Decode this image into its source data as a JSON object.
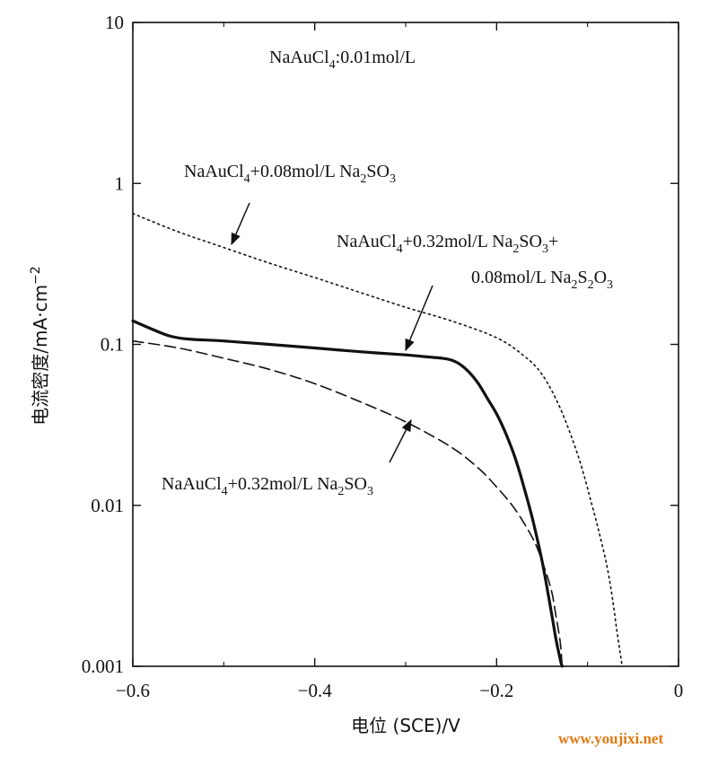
{
  "chart_data": {
    "type": "line",
    "title": "",
    "xlabel": "电位 (SCE)/V",
    "ylabel": "电流密度/mA·cm",
    "ylabel_sup": "−2",
    "xlim": [
      -0.6,
      0
    ],
    "ylim": [
      0.001,
      10
    ],
    "yscale": "log",
    "x_ticks": [
      -0.6,
      -0.4,
      -0.2,
      0
    ],
    "x_tick_labels": [
      "−0.6",
      "−0.4",
      "−0.2",
      "0"
    ],
    "y_ticks": [
      10,
      1,
      0.1,
      0.01,
      0.001
    ],
    "y_tick_labels": [
      "10",
      "1",
      "0.1",
      "0.01",
      "0.001"
    ],
    "grid": false,
    "header_note": {
      "main": "NaAuCl",
      "sub": "4",
      "tail": ":0.01mol/L"
    },
    "series": [
      {
        "style": "dotted",
        "x": [
          -0.6,
          -0.55,
          -0.5,
          -0.45,
          -0.4,
          -0.35,
          -0.3,
          -0.25,
          -0.2,
          -0.17,
          -0.15,
          -0.13,
          -0.11,
          -0.095,
          -0.085,
          -0.078,
          -0.072,
          -0.068,
          -0.064,
          -0.062
        ],
        "y": [
          0.65,
          0.5,
          0.4,
          0.32,
          0.26,
          0.21,
          0.17,
          0.14,
          0.11,
          0.085,
          0.065,
          0.04,
          0.02,
          0.01,
          0.006,
          0.004,
          0.0025,
          0.0017,
          0.0012,
          0.001
        ]
      },
      {
        "style": "solid",
        "x": [
          -0.6,
          -0.58,
          -0.56,
          -0.54,
          -0.5,
          -0.45,
          -0.4,
          -0.35,
          -0.3,
          -0.28,
          -0.27,
          -0.26,
          -0.25,
          -0.24,
          -0.23,
          -0.22,
          -0.21,
          -0.2,
          -0.19,
          -0.18,
          -0.17,
          -0.16,
          -0.15,
          -0.14,
          -0.135,
          -0.13,
          -0.128
        ],
        "y": [
          0.14,
          0.125,
          0.113,
          0.108,
          0.105,
          0.1,
          0.095,
          0.09,
          0.086,
          0.084,
          0.083,
          0.082,
          0.08,
          0.075,
          0.067,
          0.057,
          0.046,
          0.037,
          0.028,
          0.02,
          0.013,
          0.008,
          0.0045,
          0.0022,
          0.0015,
          0.0011,
          0.001
        ]
      },
      {
        "style": "dashed",
        "x": [
          -0.6,
          -0.55,
          -0.5,
          -0.45,
          -0.4,
          -0.35,
          -0.3,
          -0.25,
          -0.22,
          -0.2,
          -0.18,
          -0.16,
          -0.15,
          -0.14,
          -0.135,
          -0.13,
          -0.128
        ],
        "y": [
          0.105,
          0.095,
          0.082,
          0.07,
          0.057,
          0.044,
          0.033,
          0.023,
          0.017,
          0.013,
          0.0095,
          0.0062,
          0.0045,
          0.003,
          0.0021,
          0.0014,
          0.001
        ]
      }
    ],
    "annotations": [
      {
        "parts": [
          [
            "NaAuCl",
            "4",
            "+0.08mol/L Na"
          ],
          [
            "",
            "2",
            "SO"
          ],
          [
            "",
            "3",
            ""
          ]
        ]
      },
      {
        "parts": [
          [
            "NaAuCl",
            "4",
            "+0.32mol/L Na"
          ],
          [
            "",
            "2",
            "SO"
          ],
          [
            "",
            "3",
            "+"
          ]
        ]
      },
      {
        "parts": [
          [
            "0.08mol/L Na",
            "2",
            "S"
          ],
          [
            "",
            "2",
            "O"
          ],
          [
            "",
            "3",
            ""
          ]
        ]
      },
      {
        "parts": [
          [
            "NaAuCl",
            "4",
            "+0.32mol/L Na"
          ],
          [
            "",
            "2",
            "SO"
          ],
          [
            "",
            "3",
            ""
          ]
        ]
      }
    ]
  },
  "watermark": "www.youjixi.net"
}
